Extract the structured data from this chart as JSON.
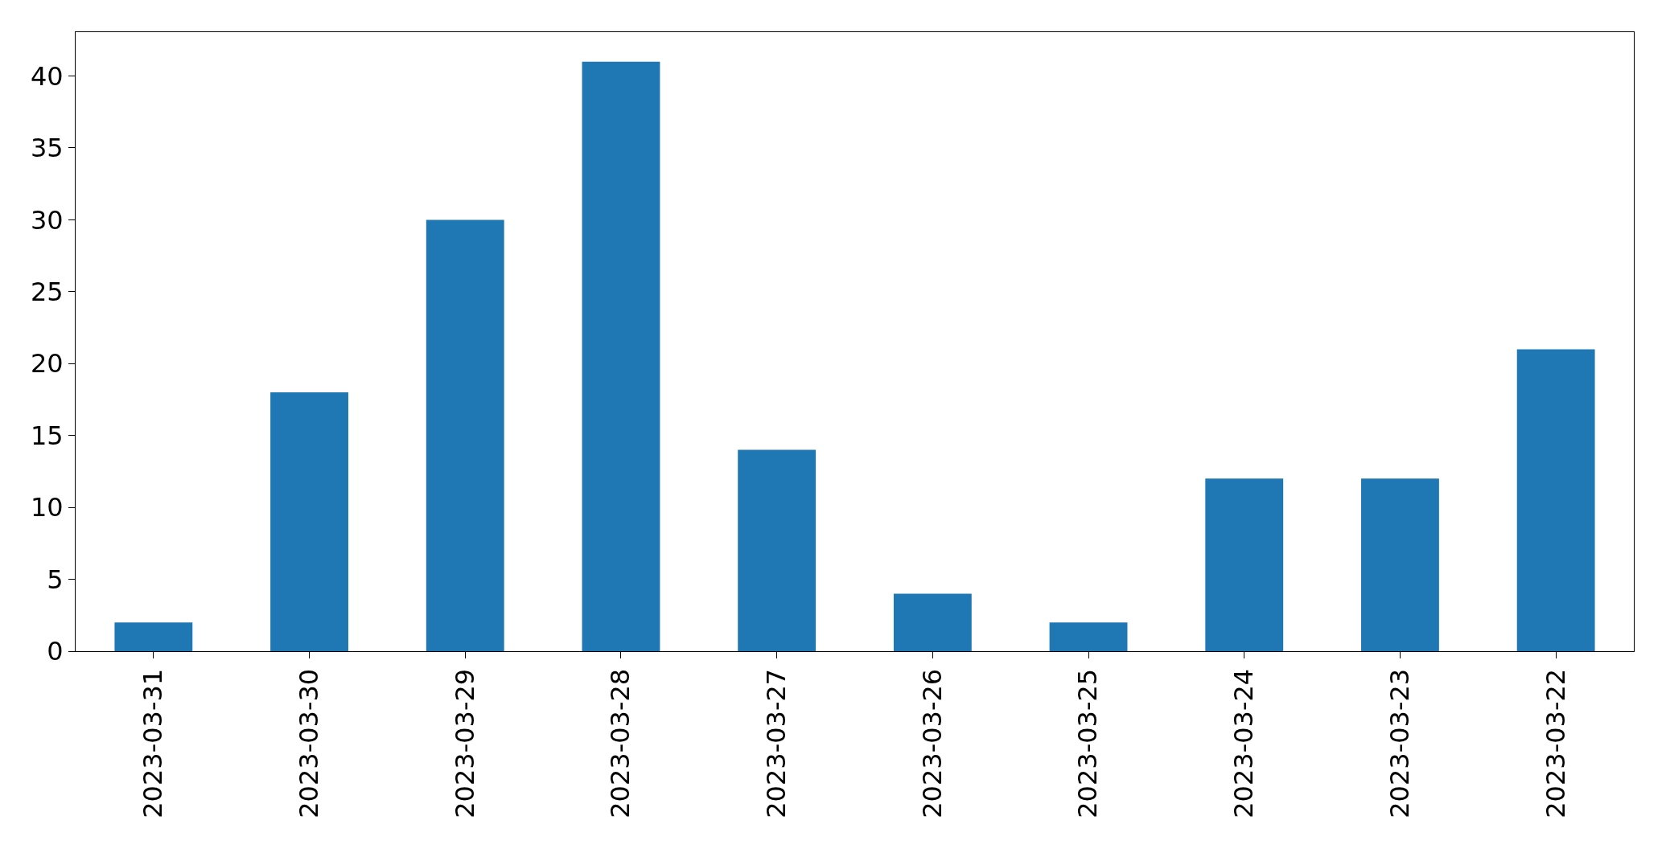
{
  "chart_data": {
    "type": "bar",
    "categories": [
      "2023-03-31",
      "2023-03-30",
      "2023-03-29",
      "2023-03-28",
      "2023-03-27",
      "2023-03-26",
      "2023-03-25",
      "2023-03-24",
      "2023-03-23",
      "2023-03-22"
    ],
    "values": [
      2,
      18,
      30,
      41,
      14,
      4,
      2,
      12,
      12,
      21
    ],
    "color": "#1f77b4",
    "ylim": [
      0,
      43.05
    ],
    "yticks": [
      0,
      5,
      10,
      15,
      20,
      25,
      30,
      35,
      40
    ]
  }
}
